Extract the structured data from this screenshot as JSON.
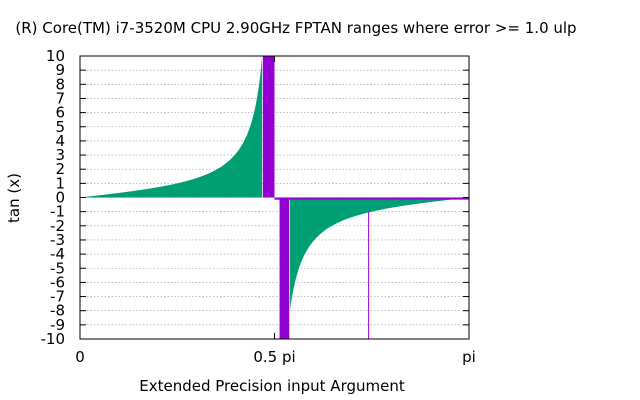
{
  "chart_data": {
    "type": "area",
    "title": "(R) Core(TM) i7-3520M CPU 2.90GHz FPTAN ranges where error >= 1.0 ulp",
    "xlabel": "Extended Precision input Argument",
    "ylabel": "tan (x)",
    "xlim": [
      0,
      1
    ],
    "ylim": [
      -10,
      10
    ],
    "x_ticks": [
      {
        "value": 0,
        "label": "0"
      },
      {
        "value": 0.5,
        "label": "0.5 pi"
      },
      {
        "value": 1,
        "label": "pi"
      }
    ],
    "y_ticks": [
      -10,
      -9,
      -8,
      -7,
      -6,
      -5,
      -4,
      -3,
      -2,
      -1,
      0,
      1,
      2,
      3,
      4,
      5,
      6,
      7,
      8,
      9,
      10
    ],
    "y_tick_labels": [
      "-10",
      "-9",
      "-8",
      "-7",
      "-6",
      "-5",
      "-4",
      "-3",
      "-2",
      "-1",
      "0",
      "1",
      "2",
      "3",
      "4",
      "5",
      "6",
      "7",
      "8",
      "9",
      "10"
    ],
    "grid": "horizontal-dotted",
    "series": [
      {
        "function": "tan(pi*x)",
        "color": "#009e73",
        "segments": [
          {
            "x_start": 0.0,
            "x_end": 0.468
          },
          {
            "x_start": 0.54,
            "x_end": 1.0
          }
        ]
      },
      {
        "color": "#9400d3",
        "error_bands": [
          {
            "x_start": 0.47,
            "x_end": 0.5,
            "y_from": 0,
            "y_to": 10
          },
          {
            "x_start": 0.5,
            "x_end": 0.513,
            "y_from": 0,
            "y_to": -0.15
          },
          {
            "x_start": 0.513,
            "x_end": 0.538,
            "y_from": 0,
            "y_to": -10
          },
          {
            "x_start": 0.5,
            "x_end": 1.0,
            "y_from": 0,
            "y_to": -0.15
          }
        ],
        "error_lines": [
          {
            "x": 0.742,
            "y_from": -1.0,
            "y_to": -10
          }
        ]
      }
    ]
  }
}
